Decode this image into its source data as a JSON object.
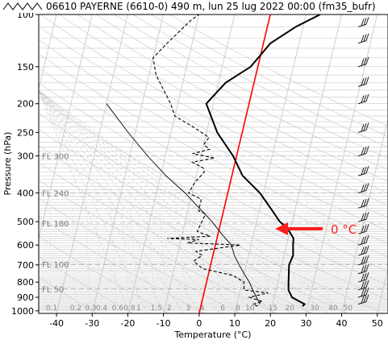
{
  "chart_data": {
    "type": "line",
    "title": "06610 PAYERNE (6610-0) 490 m, lun 25 lug 2022 00:00 (fm35_bufr)",
    "xlabel": "Temperature (°C)",
    "ylabel": "Pressure (hPa)",
    "xlim": [
      -45,
      53
    ],
    "ylim": [
      1020,
      100
    ],
    "y_scale": "log",
    "temperature_ticks": [
      "-40",
      "-30",
      "-20",
      "-10",
      "0",
      "10",
      "20",
      "30",
      "40",
      "50"
    ],
    "pressure_ticks": [
      "100",
      "150",
      "200",
      "250",
      "300",
      "400",
      "500",
      "600",
      "700",
      "800",
      "900",
      "1000"
    ],
    "flight_levels": [
      {
        "label": "FL 300",
        "pressure": 300
      },
      {
        "label": "FL 240",
        "pressure": 400
      },
      {
        "label": "FL 180",
        "pressure": 506
      },
      {
        "label": "FL 100",
        "pressure": 697
      },
      {
        "label": "FL 50",
        "pressure": 843
      }
    ],
    "mixing_ratio_labels": [
      "0.1",
      "0.2",
      "0.3",
      "0.4",
      "0.6",
      "0.8",
      "1",
      "1.5",
      "2",
      "3",
      "4",
      "6",
      "8",
      "10",
      "15",
      "20",
      "30",
      "40",
      "50"
    ],
    "series": [
      {
        "key": "temperature",
        "style": "solid-thick",
        "color": "#000000",
        "points": [
          [
            28.5,
            965
          ],
          [
            29.0,
            950
          ],
          [
            27.0,
            925
          ],
          [
            25.0,
            900
          ],
          [
            23.5,
            850
          ],
          [
            23.0,
            800
          ],
          [
            22.0,
            700
          ],
          [
            22.5,
            650
          ],
          [
            21.8,
            600
          ],
          [
            21.5,
            570
          ],
          [
            19.0,
            525
          ],
          [
            16.5,
            500
          ],
          [
            13.0,
            450
          ],
          [
            9.0,
            400
          ],
          [
            3.0,
            350
          ],
          [
            -1.0,
            300
          ],
          [
            -7.0,
            250
          ],
          [
            -12.0,
            200
          ],
          [
            -8.0,
            170
          ],
          [
            -2.0,
            150
          ],
          [
            2.0,
            125
          ],
          [
            8.0,
            110
          ],
          [
            14.0,
            100
          ]
        ]
      },
      {
        "key": "dewpoint",
        "style": "dashed",
        "color": "#000000",
        "points": [
          [
            16.0,
            965
          ],
          [
            14.5,
            950
          ],
          [
            17.0,
            930
          ],
          [
            13.0,
            900
          ],
          [
            18.0,
            870
          ],
          [
            11.0,
            850
          ],
          [
            10.5,
            800
          ],
          [
            7.0,
            760
          ],
          [
            -2.0,
            720
          ],
          [
            -5.0,
            680
          ],
          [
            -3.0,
            650
          ],
          [
            -5.0,
            630
          ],
          [
            7.0,
            600
          ],
          [
            -8.0,
            590
          ],
          [
            -5.0,
            575
          ],
          [
            -14.0,
            570
          ],
          [
            -2.0,
            560
          ],
          [
            -6.0,
            540
          ],
          [
            -5.0,
            480
          ],
          [
            -5.0,
            470
          ],
          [
            -7.0,
            460
          ],
          [
            -7.0,
            420
          ],
          [
            -11.0,
            400
          ],
          [
            -10.0,
            370
          ],
          [
            -8.0,
            340
          ],
          [
            -8.5,
            330
          ],
          [
            -12.0,
            315
          ],
          [
            -6.0,
            305
          ],
          [
            -12.5,
            295
          ],
          [
            -8.0,
            285
          ],
          [
            -10.0,
            275
          ],
          [
            -9.0,
            260
          ],
          [
            -14.0,
            240
          ],
          [
            -20.0,
            220
          ],
          [
            -22.0,
            200
          ],
          [
            -28.0,
            160
          ],
          [
            -30.0,
            140
          ],
          [
            -27.0,
            125
          ],
          [
            -22.0,
            105
          ],
          [
            -20.0,
            100
          ]
        ]
      },
      {
        "key": "parcel",
        "style": "solid-thin",
        "color": "#000000",
        "points": [
          [
            16.5,
            950
          ],
          [
            15.0,
            900
          ],
          [
            13.5,
            850
          ],
          [
            12.0,
            800
          ],
          [
            10.0,
            750
          ],
          [
            8.0,
            700
          ],
          [
            6.0,
            650
          ],
          [
            4.5,
            600
          ],
          [
            1.0,
            550
          ],
          [
            -2.5,
            500
          ],
          [
            -7.0,
            450
          ],
          [
            -12.0,
            400
          ],
          [
            -18.5,
            350
          ],
          [
            -25.0,
            300
          ],
          [
            -32.0,
            250
          ],
          [
            -40.0,
            200
          ]
        ]
      }
    ],
    "wind_barbs": [
      100,
      110,
      125,
      150,
      175,
      200,
      250,
      300,
      350,
      400,
      450,
      500,
      550,
      600,
      650,
      700,
      750,
      800,
      850,
      900,
      950
    ],
    "freezing_line_color": "#ff0000",
    "annotation": {
      "text": "0 °C",
      "color": "#ff1e1e"
    }
  }
}
